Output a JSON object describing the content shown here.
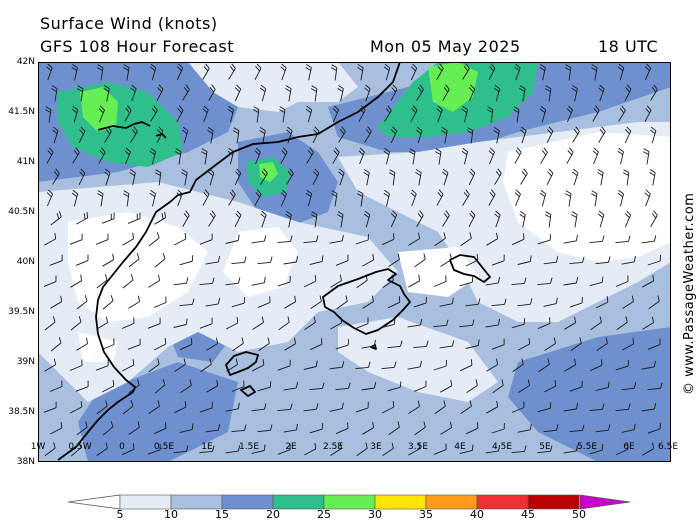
{
  "header": {
    "title": "Surface Wind (knots)",
    "model": "GFS 108 Hour Forecast",
    "date": "Mon 05 May 2025",
    "time": "18 UTC"
  },
  "credit": "© www.PassageWeather.com",
  "axes": {
    "lat_labels": [
      "42N",
      "41.5N",
      "41N",
      "40.5N",
      "40N",
      "39.5N",
      "39N",
      "38.5N",
      "38N"
    ],
    "lon_labels": [
      "1W",
      "0.5W",
      "0",
      "0.5E",
      "1E",
      "1.5E",
      "2E",
      "2.5E",
      "3E",
      "3.5E",
      "4E",
      "4.5E",
      "5E",
      "5.5E",
      "6E",
      "6.5E"
    ],
    "lat_range": [
      38,
      42
    ],
    "lon_range": [
      -1,
      6.5
    ]
  },
  "scale": {
    "labels": [
      "5",
      "10",
      "15",
      "20",
      "25",
      "30",
      "35",
      "40",
      "45",
      "50"
    ],
    "colors": [
      "#e6ecf6",
      "#a8bfe0",
      "#6f90cf",
      "#2fbf8c",
      "#66ee55",
      "#ffe400",
      "#ff9a1a",
      "#ee3030",
      "#bb0000",
      "#cc00cc"
    ]
  },
  "map_colors": {
    "calm": "#ffffff",
    "coast": "#000000",
    "barb": "#1a1a1a"
  }
}
